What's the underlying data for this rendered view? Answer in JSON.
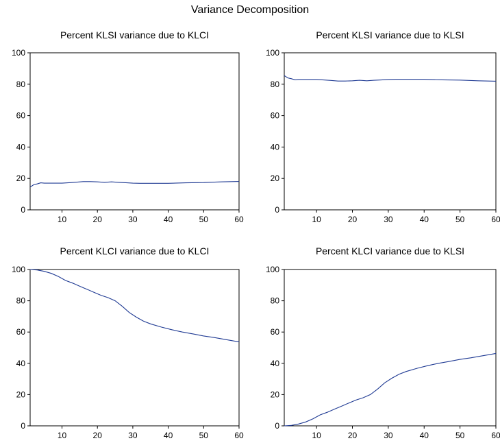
{
  "title": "Variance Decomposition",
  "colors": {
    "line": "#1f3a93",
    "frame": "#000000"
  },
  "chart_data": [
    {
      "type": "line",
      "title": "Percent KLSI variance due to KLCI",
      "xlim": [
        1,
        60
      ],
      "ylim": [
        0,
        100
      ],
      "xticks": [
        10,
        20,
        30,
        40,
        50,
        60
      ],
      "yticks": [
        0,
        20,
        40,
        60,
        80,
        100
      ],
      "x": [
        1,
        2,
        3,
        4,
        5,
        6,
        7,
        8,
        9,
        10,
        12,
        14,
        16,
        18,
        20,
        22,
        24,
        26,
        28,
        30,
        32,
        35,
        40,
        45,
        50,
        55,
        60
      ],
      "y": [
        14.5,
        16,
        16.5,
        17.2,
        17,
        17,
        17,
        17,
        17,
        17,
        17.3,
        17.6,
        18,
        18,
        17.8,
        17.5,
        17.8,
        17.5,
        17.3,
        17,
        16.9,
        16.9,
        16.9,
        17.2,
        17.4,
        17.8,
        18.1
      ]
    },
    {
      "type": "line",
      "title": "Percent KLSI variance due to KLSI",
      "xlim": [
        1,
        60
      ],
      "ylim": [
        0,
        100
      ],
      "xticks": [
        10,
        20,
        30,
        40,
        50,
        60
      ],
      "yticks": [
        0,
        20,
        40,
        60,
        80,
        100
      ],
      "x": [
        1,
        2,
        3,
        4,
        5,
        6,
        7,
        8,
        9,
        10,
        12,
        14,
        16,
        18,
        20,
        22,
        24,
        26,
        28,
        30,
        32,
        35,
        40,
        45,
        50,
        55,
        60
      ],
      "y": [
        85.5,
        84,
        83.5,
        82.8,
        83,
        83,
        83,
        83,
        83,
        83,
        82.7,
        82.4,
        82,
        82,
        82.2,
        82.5,
        82.2,
        82.5,
        82.7,
        83,
        83.1,
        83.1,
        83.1,
        82.8,
        82.6,
        82.2,
        81.9
      ]
    },
    {
      "type": "line",
      "title": "Percent KLCI variance due to KLCI",
      "xlim": [
        1,
        60
      ],
      "ylim": [
        0,
        100
      ],
      "xticks": [
        10,
        20,
        30,
        40,
        50,
        60
      ],
      "yticks": [
        0,
        20,
        40,
        60,
        80,
        100
      ],
      "x": [
        1,
        3,
        5,
        7,
        9,
        11,
        13,
        15,
        17,
        19,
        21,
        23,
        25,
        27,
        29,
        31,
        33,
        35,
        38,
        41,
        44,
        47,
        50,
        53,
        56,
        60
      ],
      "y": [
        100,
        99.7,
        98.8,
        97.5,
        95.5,
        93,
        91.3,
        89.3,
        87.4,
        85.4,
        83.5,
        82,
        80,
        76.5,
        72.5,
        69.5,
        67,
        65.2,
        63.2,
        61.5,
        60,
        58.8,
        57.5,
        56.5,
        55.3,
        53.7
      ]
    },
    {
      "type": "line",
      "title": "Percent KLCI variance due to KLSI",
      "xlim": [
        1,
        60
      ],
      "ylim": [
        0,
        100
      ],
      "xticks": [
        10,
        20,
        30,
        40,
        50,
        60
      ],
      "yticks": [
        0,
        20,
        40,
        60,
        80,
        100
      ],
      "x": [
        1,
        3,
        5,
        7,
        9,
        11,
        13,
        15,
        17,
        19,
        21,
        23,
        25,
        27,
        29,
        31,
        33,
        35,
        38,
        41,
        44,
        47,
        50,
        53,
        56,
        60
      ],
      "y": [
        0,
        0.3,
        1.2,
        2.5,
        4.5,
        7,
        8.7,
        10.7,
        12.6,
        14.6,
        16.5,
        18,
        20,
        23.5,
        27.5,
        30.5,
        33,
        34.8,
        36.8,
        38.5,
        40,
        41.2,
        42.5,
        43.5,
        44.7,
        46.3
      ]
    }
  ]
}
